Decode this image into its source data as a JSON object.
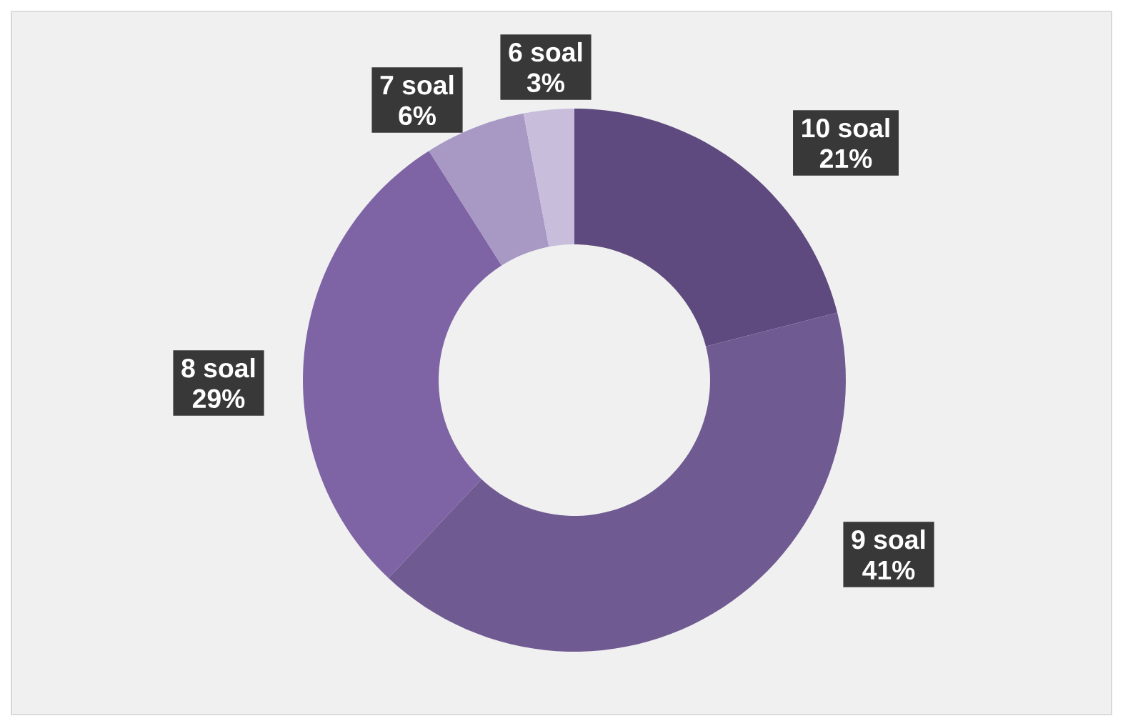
{
  "chart_data": {
    "type": "donut",
    "categories": [
      "10 soal",
      "9 soal",
      "8 soal",
      "7 soal",
      "6 soal"
    ],
    "values": [
      21,
      41,
      29,
      6,
      3
    ],
    "value_labels": [
      "21%",
      "41%",
      "29%",
      "6%",
      "3%"
    ],
    "colors": [
      "#5e4a7e",
      "#705a92",
      "#7e64a4",
      "#a898c4",
      "#c8bedc"
    ]
  }
}
